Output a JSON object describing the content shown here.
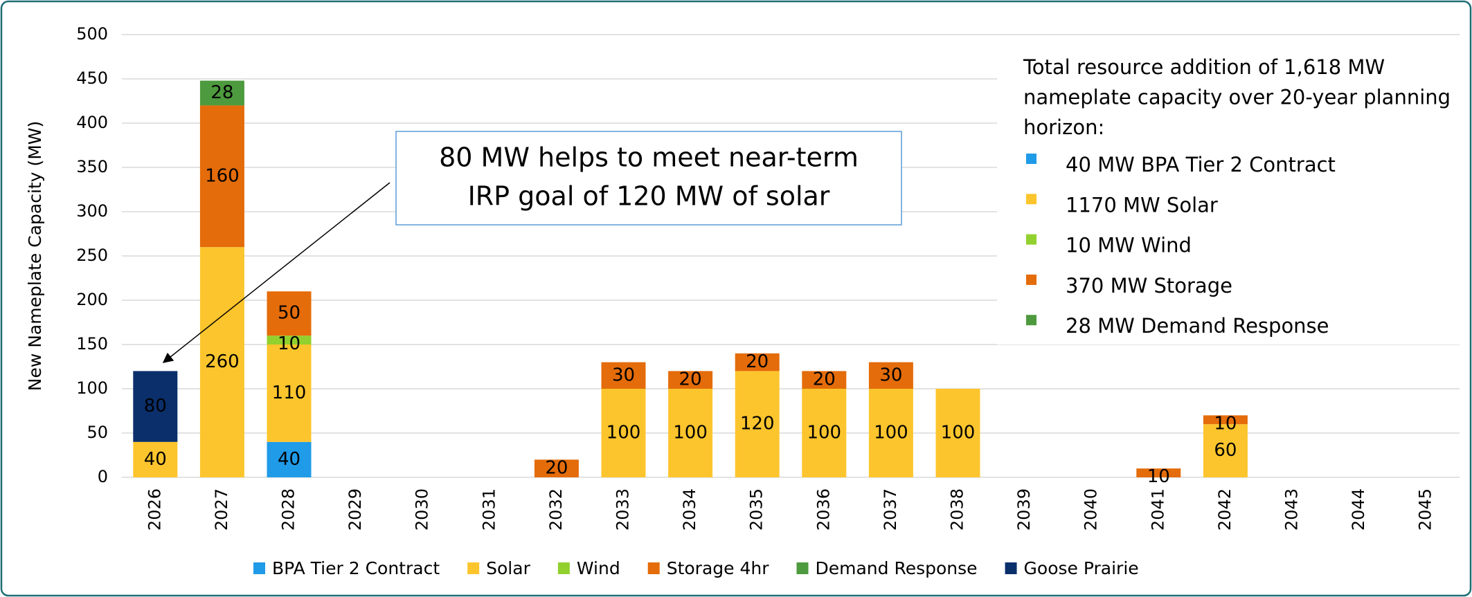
{
  "chart_data": {
    "type": "stacked_bar",
    "y_axis_label": "New Nameplate Capacity (MW)",
    "categories": [
      "2026",
      "2027",
      "2028",
      "2029",
      "2030",
      "2031",
      "2032",
      "2033",
      "2034",
      "2035",
      "2036",
      "2037",
      "2038",
      "2039",
      "2040",
      "2041",
      "2042",
      "2043",
      "2044",
      "2045"
    ],
    "series": [
      {
        "name": "BPA Tier 2 Contract",
        "color": "#1f9be8",
        "values": [
          null,
          null,
          40,
          null,
          null,
          null,
          null,
          null,
          null,
          null,
          null,
          null,
          null,
          null,
          null,
          null,
          null,
          null,
          null,
          null
        ]
      },
      {
        "name": "Solar",
        "color": "#fdc52d",
        "values": [
          40,
          260,
          110,
          null,
          null,
          null,
          null,
          100,
          100,
          120,
          100,
          100,
          100,
          null,
          null,
          null,
          60,
          null,
          null,
          null
        ]
      },
      {
        "name": "Wind",
        "color": "#92d02e",
        "values": [
          null,
          null,
          10,
          null,
          null,
          null,
          null,
          null,
          null,
          null,
          null,
          null,
          null,
          null,
          null,
          null,
          null,
          null,
          null,
          null
        ]
      },
      {
        "name": "Storage 4hr",
        "color": "#e46c0a",
        "values": [
          null,
          160,
          50,
          null,
          null,
          null,
          20,
          30,
          20,
          20,
          20,
          30,
          null,
          null,
          null,
          10,
          10,
          null,
          null,
          null
        ]
      },
      {
        "name": "Demand Response",
        "color": "#4e9a3e",
        "values": [
          null,
          28,
          null,
          null,
          null,
          null,
          null,
          null,
          null,
          null,
          null,
          null,
          null,
          null,
          null,
          null,
          null,
          null,
          null,
          null
        ]
      },
      {
        "name": "Goose Prairie",
        "color": "#0b2f6b",
        "values": [
          80,
          null,
          null,
          null,
          null,
          null,
          null,
          null,
          null,
          null,
          null,
          null,
          null,
          null,
          null,
          null,
          null,
          null,
          null,
          null
        ]
      }
    ],
    "ylim": [
      0,
      500
    ],
    "yticks": [
      0,
      50,
      100,
      150,
      200,
      250,
      300,
      350,
      400,
      450,
      500
    ],
    "grid": true,
    "legend": "bottom",
    "annotation": [
      "80 MW helps to meet near-term",
      "IRP goal of 120 MW of solar"
    ],
    "note": {
      "lines": [
        "Total resource addition of 1,618 MW",
        "nameplate capacity over 20-year planning",
        "horizon:"
      ],
      "items": [
        {
          "text": "40 MW BPA Tier 2 Contract",
          "color": "#1f9be8"
        },
        {
          "text": "1170 MW Solar",
          "color": "#fdc52d"
        },
        {
          "text": "10 MW Wind",
          "color": "#92d02e"
        },
        {
          "text": "370 MW Storage",
          "color": "#e46c0a"
        },
        {
          "text": "28 MW Demand Response",
          "color": "#4e9a3e"
        }
      ]
    }
  }
}
